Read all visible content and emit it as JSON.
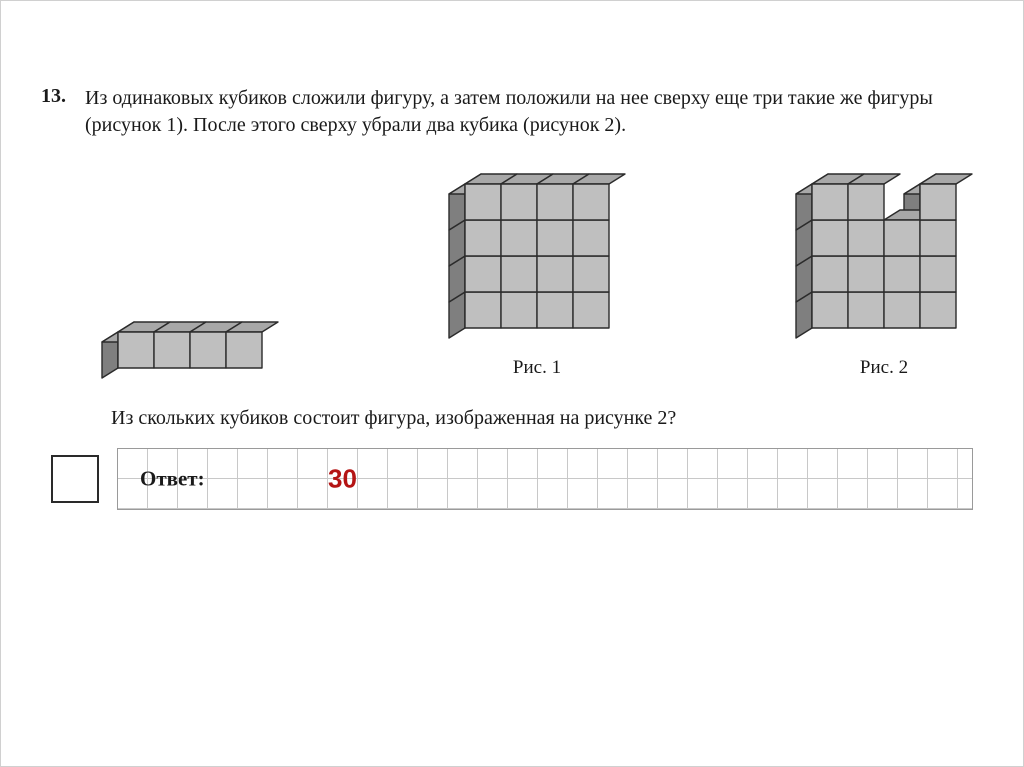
{
  "problem": {
    "number": "13.",
    "text": "Из одинаковых кубиков сложили фигуру, а затем положили на нее сверху еще три такие же фигуры (рисунок 1). После этого сверху убрали два кубика (рисунок 2)."
  },
  "captions": {
    "fig1": "Рис. 1",
    "fig2": "Рис. 2"
  },
  "question": "Из скольких кубиков состоит фигура, изображенная на рисунке 2?",
  "answer": {
    "label": "Ответ:",
    "value": "30",
    "value_color": "#b41414"
  },
  "cube": {
    "top_fill": "#a8a8a8",
    "left_fill": "#7f7f7f",
    "front_fill": "#bfbfbf",
    "stroke": "#2b2b2b",
    "stroke_width": 1.4,
    "unit": 36,
    "depth_dx": 16,
    "depth_dy": 10
  },
  "figures": {
    "slab": {
      "nx": 4,
      "ny": 2,
      "nz": 1,
      "removed": []
    },
    "block": {
      "nx": 4,
      "ny": 2,
      "nz": 4,
      "removed": []
    },
    "cut": {
      "nx": 4,
      "ny": 2,
      "nz": 4,
      "removed": [
        [
          2,
          0,
          3
        ],
        [
          2,
          1,
          3
        ]
      ]
    }
  }
}
